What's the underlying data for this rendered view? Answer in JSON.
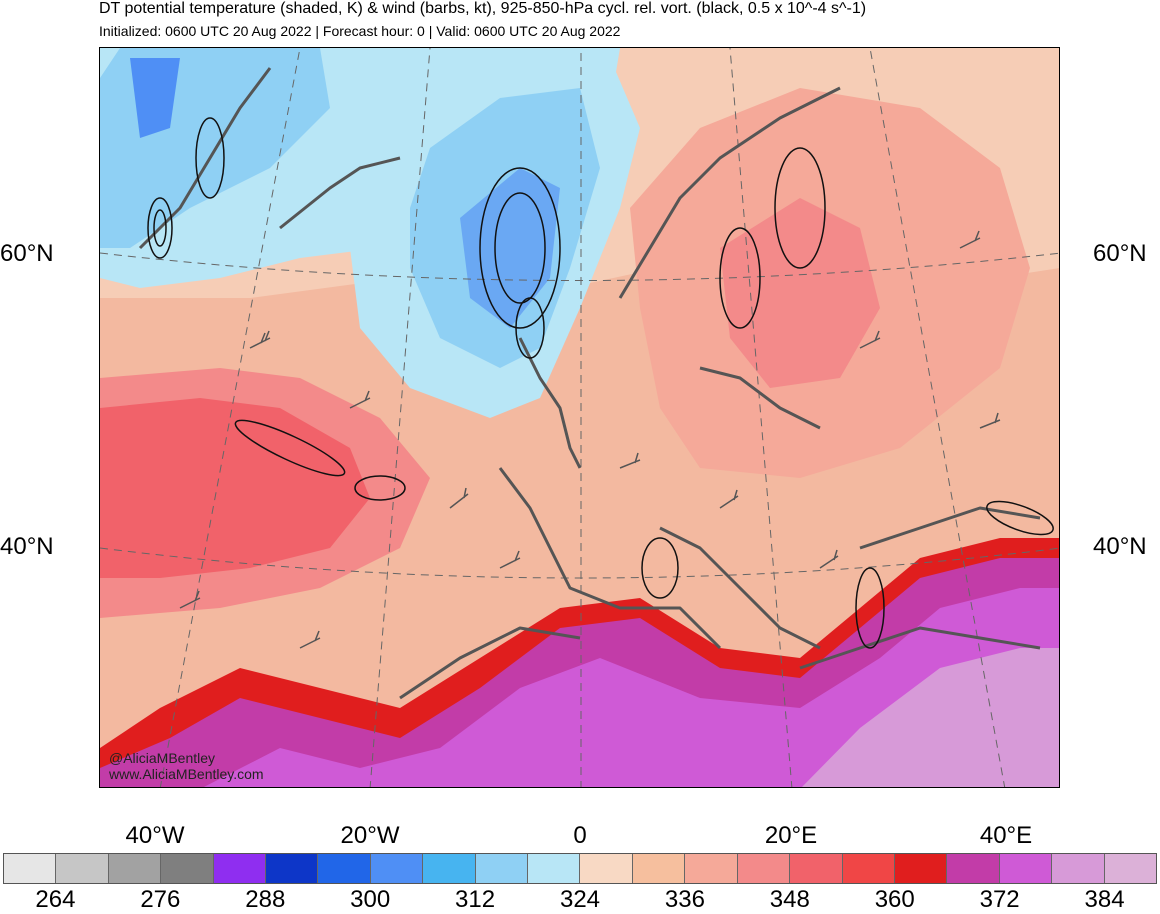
{
  "header": {
    "title": "DT potential temperature (shaded, K) & wind (barbs, kt), 925-850-hPa cycl. rel. vort. (black, 0.5 x 10^-4 s^-1)",
    "subtitle": "Initialized: 0600 UTC 20 Aug 2022 | Forecast hour: 0 | Valid: 0600 UTC 20 Aug 2022"
  },
  "map": {
    "credits": [
      "@AliciaMBentley",
      "www.AliciaMBentley.com"
    ],
    "lat_labels": [
      "60°N",
      "40°N"
    ],
    "lon_labels": [
      "40°W",
      "20°W",
      "0",
      "20°E",
      "40°E"
    ]
  },
  "colorbar": {
    "colors": [
      "#e6e6e6",
      "#c6c6c6",
      "#a2a2a2",
      "#7f7f7f",
      "#8f2ef0",
      "#0d36c8",
      "#2166e8",
      "#4f8ff5",
      "#47b4f0",
      "#8fd0f4",
      "#b8e6f6",
      "#f8d9c4",
      "#f6bf9e",
      "#f5a999",
      "#f38a8a",
      "#f1626a",
      "#f04646",
      "#e01e1e",
      "#c23ca8",
      "#cf5ad6",
      "#d79ad8",
      "#dcb1d8"
    ],
    "labels": [
      "264",
      "276",
      "288",
      "300",
      "312",
      "324",
      "336",
      "348",
      "360",
      "372",
      "384"
    ]
  }
}
